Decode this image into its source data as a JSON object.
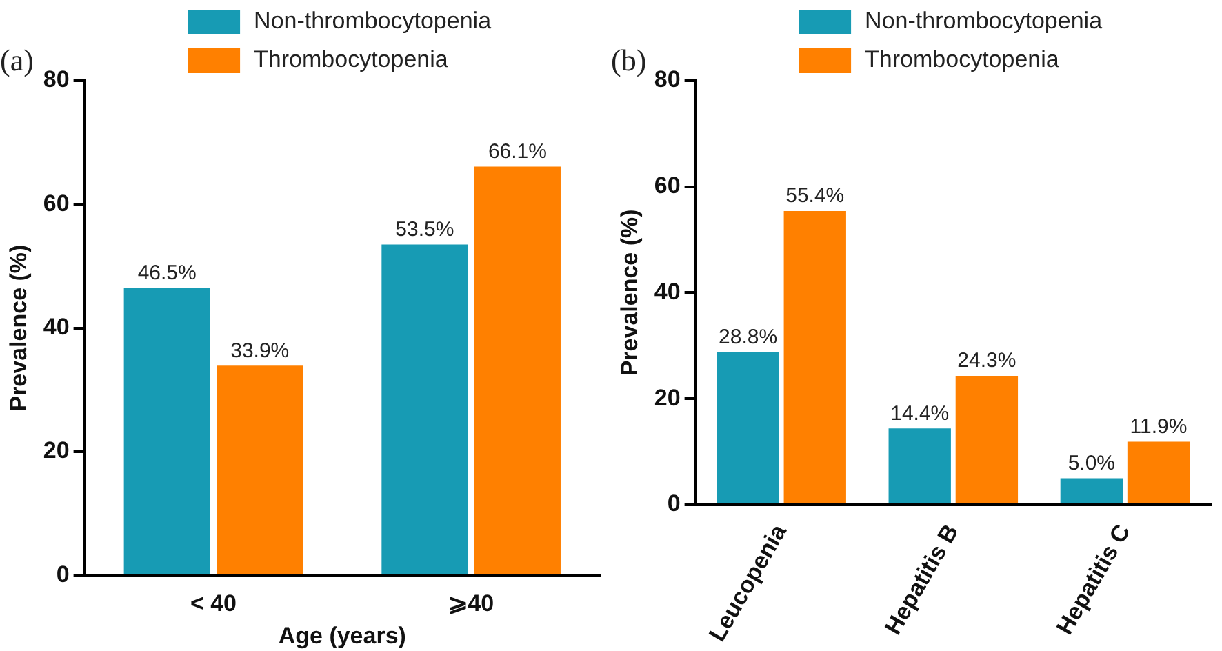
{
  "chart_data": [
    {
      "type": "bar",
      "title": "(a)",
      "xlabel": "Age (years)",
      "ylabel": "Prevalence (%)",
      "categories": [
        "< 40",
        "⩾40"
      ],
      "ylim": [
        0,
        80
      ],
      "yticks": [
        0,
        20,
        40,
        60,
        80
      ],
      "grid": false,
      "legend": "top",
      "series": [
        {
          "name": "Non-thrombocytopenia",
          "color": "#179bb4",
          "values": [
            46.5,
            53.5
          ],
          "value_labels": [
            "46.5%",
            "53.5%"
          ]
        },
        {
          "name": "Thrombocytopenia",
          "color": "#ff8000",
          "values": [
            33.9,
            66.1
          ],
          "value_labels": [
            "33.9%",
            "66.1%"
          ]
        }
      ]
    },
    {
      "type": "bar",
      "title": "(b)",
      "ylabel": "Prevalence (%)",
      "categories": [
        "Leucopenia",
        "Hepatitis B",
        "Hepatitis C"
      ],
      "ylim": [
        0,
        80
      ],
      "yticks": [
        0,
        20,
        40,
        60,
        80
      ],
      "grid": false,
      "legend": "top",
      "series": [
        {
          "name": "Non-thrombocytopenia",
          "color": "#179bb4",
          "values": [
            28.8,
            14.4,
            5.0
          ],
          "value_labels": [
            "28.8%",
            "14.4%",
            "5.0%"
          ]
        },
        {
          "name": "Thrombocytopenia",
          "color": "#ff8000",
          "values": [
            55.4,
            24.3,
            11.9
          ],
          "value_labels": [
            "55.4%",
            "24.3%",
            "11.9%"
          ]
        }
      ]
    }
  ]
}
